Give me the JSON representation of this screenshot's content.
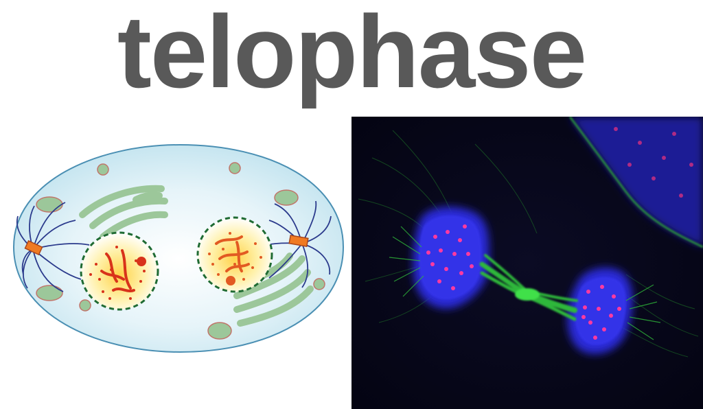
{
  "title": "telophase",
  "colors": {
    "title_text": "#595959",
    "cytoplasm": "#cfe9f3",
    "cell_membrane": "#4a8fb3",
    "organelle_fill": "#9cc79a",
    "organelle_edge": "#c0756a",
    "nuclear_envelope": "#1f6b33",
    "chromatin": "#d8321a",
    "centrosome": "#f07a22",
    "spindle_fibers": "#2b3a8c",
    "micrograph_background": "#06061a",
    "micrograph_dna": "#2a2ad8",
    "micrograph_microtubules": "#2fb83a",
    "micrograph_kinetochores": "#ff3aa0"
  }
}
